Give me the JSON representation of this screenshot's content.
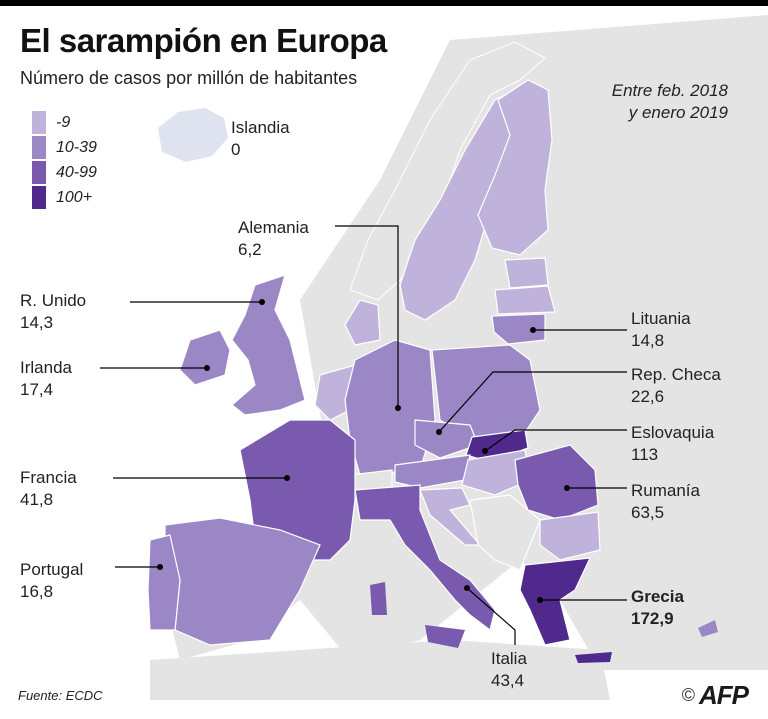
{
  "title": "El sarampión en Europa",
  "subtitle": "Número de casos por millón de habitantes",
  "period": {
    "line1": "Entre feb. 2018",
    "line2": "y enero 2019"
  },
  "legend": [
    {
      "label": "-9",
      "color": "#c0b3db"
    },
    {
      "label": "10-39",
      "color": "#9b87c5"
    },
    {
      "label": "40-99",
      "color": "#7a5aae"
    },
    {
      "label": "100+",
      "color": "#4f2a8c"
    }
  ],
  "countries": {
    "islandia": {
      "name": "Islandia",
      "value": "0"
    },
    "alemania": {
      "name": "Alemania",
      "value": "6,2"
    },
    "runido": {
      "name": "R. Unido",
      "value": "14,3"
    },
    "irlanda": {
      "name": "Irlanda",
      "value": "17,4"
    },
    "francia": {
      "name": "Francia",
      "value": "41,8"
    },
    "portugal": {
      "name": "Portugal",
      "value": "16,8"
    },
    "lituania": {
      "name": "Lituania",
      "value": "14,8"
    },
    "repcheca": {
      "name": "Rep. Checa",
      "value": "22,6"
    },
    "eslovaquia": {
      "name": "Eslovaquia",
      "value": "113"
    },
    "rumania": {
      "name": "Rumanía",
      "value": "63,5"
    },
    "grecia": {
      "name": "Grecia",
      "value": "172,9"
    },
    "italia": {
      "name": "Italia",
      "value": "43,4"
    }
  },
  "source": "Fuente: ECDC",
  "copyright": "©",
  "logo": "AFP",
  "colors": {
    "nodata": "#e4e4e4",
    "iceland": "#dfe3f0",
    "c1": "#c0b3db",
    "c2": "#9b87c5",
    "c3": "#7a5aae",
    "c4": "#4f2a8c"
  }
}
